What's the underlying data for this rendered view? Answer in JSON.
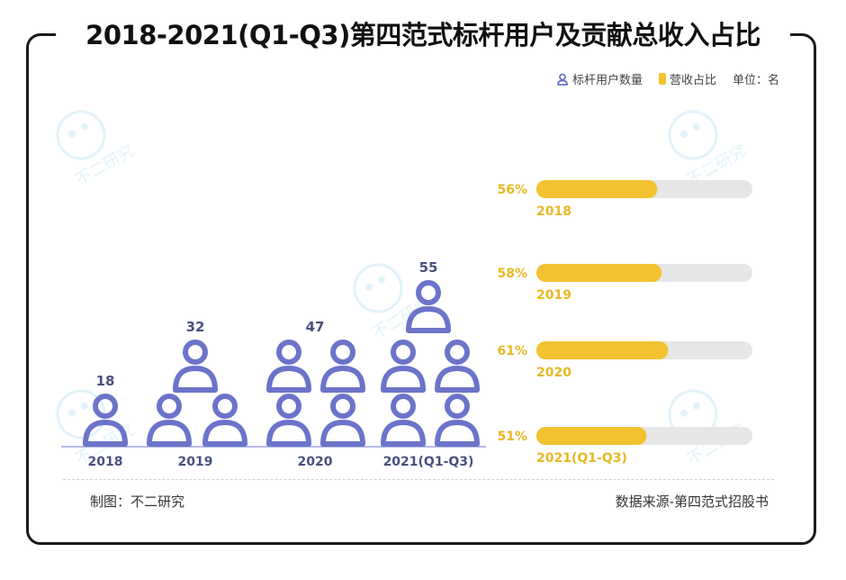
{
  "title": "2018-2021(Q1-Q3)第四范式标杆用户及贡献总收入占比",
  "legend": {
    "users_label": "标杆用户数量",
    "share_label": "营收占比",
    "unit_label": "单位：名"
  },
  "watermark_text": "不二研究",
  "footer": {
    "credit": "制图：不二研究",
    "source": "数据来源-第四范式招股书"
  },
  "colors": {
    "user_icon": "#6b74c9",
    "bar_fill": "#f2c230",
    "bar_track": "#e6e6e6",
    "label_yellow": "#e8b923",
    "baseline": "#9aa3e0"
  },
  "chart_data": [
    {
      "type": "bar",
      "title": "",
      "categories": [
        "2018",
        "2019",
        "2020",
        "2021(Q1-Q3)"
      ],
      "series": [
        {
          "name": "标杆用户数量",
          "values": [
            18,
            32,
            47,
            55
          ]
        }
      ],
      "value_labels": [
        "18",
        "32",
        "47",
        "55"
      ],
      "icon_counts": [
        1,
        3,
        4,
        5
      ]
    },
    {
      "type": "bar",
      "title": "",
      "categories": [
        "2018",
        "2019",
        "2020",
        "2021(Q1-Q3)"
      ],
      "series": [
        {
          "name": "营收占比",
          "values": [
            56,
            58,
            61,
            51
          ]
        }
      ],
      "value_labels": [
        "56%",
        "58%",
        "61%",
        "51%"
      ],
      "ylim": [
        0,
        100
      ]
    }
  ]
}
